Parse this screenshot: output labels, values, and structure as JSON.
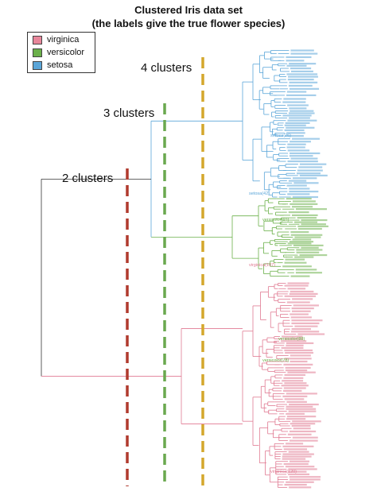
{
  "title": {
    "line1": "Clustered Iris data set",
    "line2": "(the labels give the true flower species)"
  },
  "legend": [
    {
      "label": "virginica",
      "color": "#e8869b"
    },
    {
      "label": "versicolor",
      "color": "#6bb04a"
    },
    {
      "label": "setosa",
      "color": "#5ba6d9"
    }
  ],
  "cuts": [
    {
      "label": "2 clusters",
      "color": "#b03a2e"
    },
    {
      "label": "3 clusters",
      "color": "#6aa84f"
    },
    {
      "label": "4 clusters",
      "color": "#d4a72c"
    }
  ],
  "colors": {
    "root": "#333333",
    "setosa": "#5ba6d9",
    "versicolor": "#6bb04a",
    "virginica": "#e07a92"
  },
  "leaf_labels": {
    "setosa_a": "setosa(26)",
    "setosa_b": "setosa(42)",
    "versicolor_a": "versicolor(69)",
    "virginica_a": "virginica(107)",
    "versicolor_b": "versicolor(88)",
    "versicolor_c": "versicolor(78)",
    "virginica_b": "virginica(120)"
  }
}
